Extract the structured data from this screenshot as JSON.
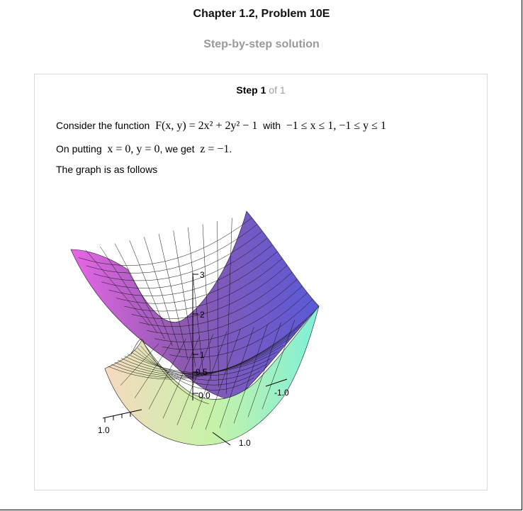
{
  "header": {
    "title": "Chapter 1.2, Problem 10E",
    "subtitle": "Step-by-step solution"
  },
  "step": {
    "label": "Step",
    "number": "1",
    "of_text": "of 1"
  },
  "content": {
    "line1_prefix": "Consider the function",
    "line1_formula": "F(x, y) = 2x² + 2y² − 1",
    "line1_with": "with",
    "line1_domain": "−1 ≤ x ≤ 1, −1 ≤ y ≤ 1",
    "line2_prefix": "On putting",
    "line2_formula": "x = 0, y = 0",
    "line2_middle": ", we get",
    "line2_result": "z = −1",
    "line2_period": ".",
    "line3": "The graph is as follows"
  },
  "graph": {
    "z_ticks": [
      "3",
      "2",
      "1",
      "0.5",
      "0.0"
    ],
    "x_label_left": "1.0",
    "x_label_bottom": "1.0",
    "y_label_right": "-1.0"
  }
}
